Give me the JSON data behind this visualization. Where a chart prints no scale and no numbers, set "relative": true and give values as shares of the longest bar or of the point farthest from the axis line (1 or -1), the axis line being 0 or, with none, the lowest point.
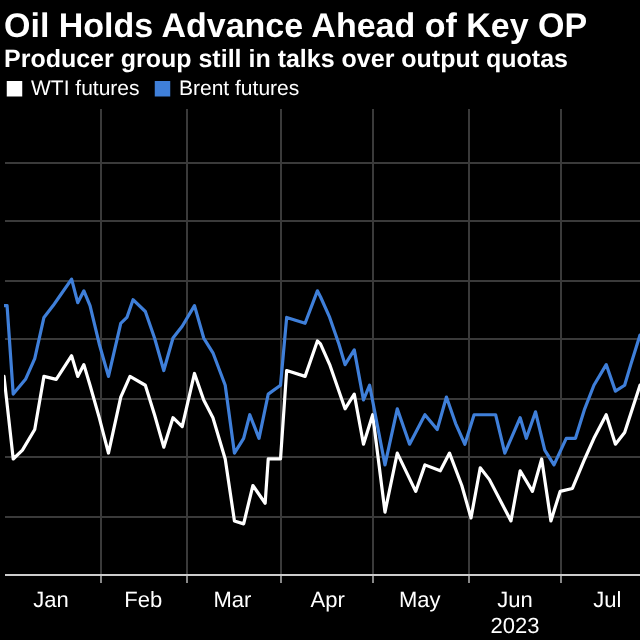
{
  "chart_data": {
    "type": "line",
    "title": "Oil Holds Advance Ahead of Key OP",
    "subtitle": "Producer group still in talks over output quotas",
    "relative": true,
    "grid": true,
    "legend": "top left",
    "xlim": [
      "2023-01-01",
      "2023-07-27"
    ],
    "xticks": [
      {
        "value": "2023-01-16",
        "label": "Jan"
      },
      {
        "value": "2023-02-01",
        "label": null
      },
      {
        "value": "2023-02-15",
        "label": "Feb"
      },
      {
        "value": "2023-03-01",
        "label": null
      },
      {
        "value": "2023-03-16",
        "label": "Mar"
      },
      {
        "value": "2023-04-01",
        "label": null
      },
      {
        "value": "2023-04-16",
        "label": "Apr"
      },
      {
        "value": "2023-05-01",
        "label": null
      },
      {
        "value": "2023-05-16",
        "label": "May"
      },
      {
        "value": "2023-06-01",
        "label": null
      },
      {
        "value": "2023-06-16",
        "label": "Jun\n2023"
      },
      {
        "value": "2023-07-01",
        "label": null
      },
      {
        "value": "2023-07-16",
        "label": "Jul"
      }
    ],
    "series": [
      {
        "name": "WTI futures",
        "color": "#ffffff",
        "x": [
          "2023-01-01",
          "2023-01-04",
          "2023-01-07",
          "2023-01-11",
          "2023-01-14",
          "2023-01-18",
          "2023-01-23",
          "2023-01-25",
          "2023-01-27",
          "2023-01-29",
          "2023-02-01",
          "2023-02-04",
          "2023-02-08",
          "2023-02-11",
          "2023-02-16",
          "2023-02-19",
          "2023-02-22",
          "2023-02-25",
          "2023-02-28",
          "2023-03-04",
          "2023-03-07",
          "2023-03-10",
          "2023-03-14",
          "2023-03-17",
          "2023-03-20",
          "2023-03-23",
          "2023-03-27",
          "2023-03-28",
          "2023-04-01",
          "2023-04-03",
          "2023-04-09",
          "2023-04-13",
          "2023-04-14",
          "2023-04-17",
          "2023-04-22",
          "2023-04-25",
          "2023-04-28",
          "2023-05-01",
          "2023-05-05",
          "2023-05-09",
          "2023-05-15",
          "2023-05-18",
          "2023-05-23",
          "2023-05-26",
          "2023-05-30",
          "2023-06-02",
          "2023-06-05",
          "2023-06-08",
          "2023-06-12",
          "2023-06-15",
          "2023-06-18",
          "2023-06-22",
          "2023-06-25",
          "2023-06-28",
          "2023-07-01",
          "2023-07-05",
          "2023-07-09",
          "2023-07-12",
          "2023-07-16",
          "2023-07-19",
          "2023-07-22",
          "2023-07-27"
        ],
        "values": [
          0.67,
          0.39,
          0.42,
          0.49,
          0.67,
          0.66,
          0.74,
          0.67,
          0.71,
          0.64,
          0.53,
          0.41,
          0.6,
          0.67,
          0.64,
          0.54,
          0.43,
          0.53,
          0.5,
          0.68,
          0.59,
          0.53,
          0.39,
          0.18,
          0.17,
          0.3,
          0.24,
          0.39,
          0.39,
          0.69,
          0.67,
          0.79,
          0.78,
          0.71,
          0.56,
          0.61,
          0.44,
          0.54,
          0.21,
          0.41,
          0.28,
          0.37,
          0.35,
          0.41,
          0.3,
          0.19,
          0.36,
          0.32,
          0.24,
          0.18,
          0.35,
          0.28,
          0.39,
          0.18,
          0.28,
          0.29,
          0.39,
          0.46,
          0.54,
          0.44,
          0.48,
          0.64
        ]
      },
      {
        "name": "Brent futures",
        "color": "#3f7fd9",
        "x": [
          "2023-01-01",
          "2023-01-02",
          "2023-01-04",
          "2023-01-08",
          "2023-01-11",
          "2023-01-14",
          "2023-01-17",
          "2023-01-19",
          "2023-01-23",
          "2023-01-25",
          "2023-01-27",
          "2023-01-29",
          "2023-02-01",
          "2023-02-04",
          "2023-02-08",
          "2023-02-10",
          "2023-02-12",
          "2023-02-16",
          "2023-02-19",
          "2023-02-22",
          "2023-02-25",
          "2023-02-28",
          "2023-03-04",
          "2023-03-07",
          "2023-03-10",
          "2023-03-14",
          "2023-03-17",
          "2023-03-20",
          "2023-03-22",
          "2023-03-25",
          "2023-03-28",
          "2023-04-01",
          "2023-04-03",
          "2023-04-09",
          "2023-04-13",
          "2023-04-14",
          "2023-04-17",
          "2023-04-20",
          "2023-04-22",
          "2023-04-25",
          "2023-04-28",
          "2023-04-30",
          "2023-05-05",
          "2023-05-09",
          "2023-05-13",
          "2023-05-18",
          "2023-05-22",
          "2023-05-25",
          "2023-05-28",
          "2023-05-31",
          "2023-06-03",
          "2023-06-10",
          "2023-06-13",
          "2023-06-18",
          "2023-06-20",
          "2023-06-23",
          "2023-06-26",
          "2023-06-29",
          "2023-07-03",
          "2023-07-06",
          "2023-07-09",
          "2023-07-12",
          "2023-07-16",
          "2023-07-19",
          "2023-07-22",
          "2023-07-24",
          "2023-07-27"
        ],
        "values": [
          0.91,
          0.91,
          0.61,
          0.66,
          0.73,
          0.87,
          0.91,
          0.94,
          1.0,
          0.92,
          0.96,
          0.91,
          0.78,
          0.67,
          0.85,
          0.87,
          0.93,
          0.89,
          0.8,
          0.69,
          0.8,
          0.84,
          0.91,
          0.8,
          0.75,
          0.64,
          0.41,
          0.46,
          0.54,
          0.46,
          0.61,
          0.64,
          0.87,
          0.85,
          0.96,
          0.94,
          0.87,
          0.78,
          0.71,
          0.76,
          0.59,
          0.64,
          0.37,
          0.56,
          0.44,
          0.54,
          0.49,
          0.6,
          0.51,
          0.44,
          0.54,
          0.54,
          0.41,
          0.53,
          0.46,
          0.55,
          0.42,
          0.37,
          0.46,
          0.46,
          0.56,
          0.64,
          0.71,
          0.62,
          0.64,
          0.71,
          0.81
        ]
      }
    ]
  }
}
